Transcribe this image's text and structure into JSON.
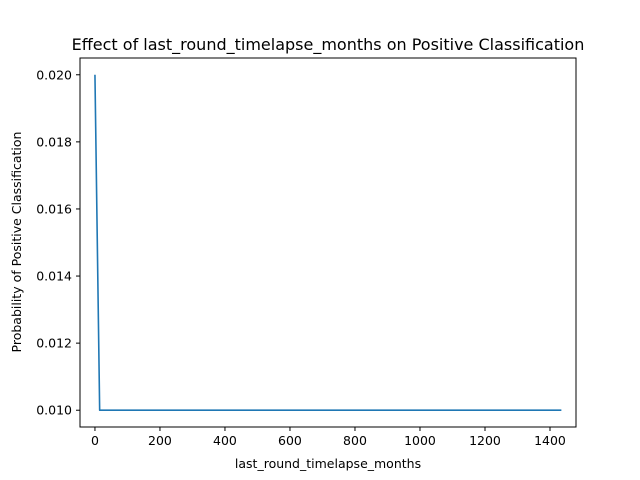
{
  "chart_data": {
    "type": "line",
    "title": "Effect of last_round_timelapse_months on Positive Classification",
    "xlabel": "last_round_timelapse_months",
    "ylabel": "Probability of Positive Classification",
    "xlim": [
      -46,
      1480
    ],
    "ylim": [
      0.0095,
      0.0205
    ],
    "x_ticks": [
      0,
      200,
      400,
      600,
      800,
      1000,
      1200,
      1400
    ],
    "x_tick_labels": [
      "0",
      "200",
      "400",
      "600",
      "800",
      "1000",
      "1200",
      "1400"
    ],
    "y_ticks": [
      0.01,
      0.012,
      0.014,
      0.016,
      0.018,
      0.02
    ],
    "y_tick_labels": [
      "0.010",
      "0.012",
      "0.014",
      "0.016",
      "0.018",
      "0.020"
    ],
    "grid": false,
    "series": [
      {
        "color": "#1f77b4",
        "x": [
          0,
          14.5,
          1435
        ],
        "y": [
          0.02,
          0.01,
          0.01
        ]
      }
    ]
  }
}
